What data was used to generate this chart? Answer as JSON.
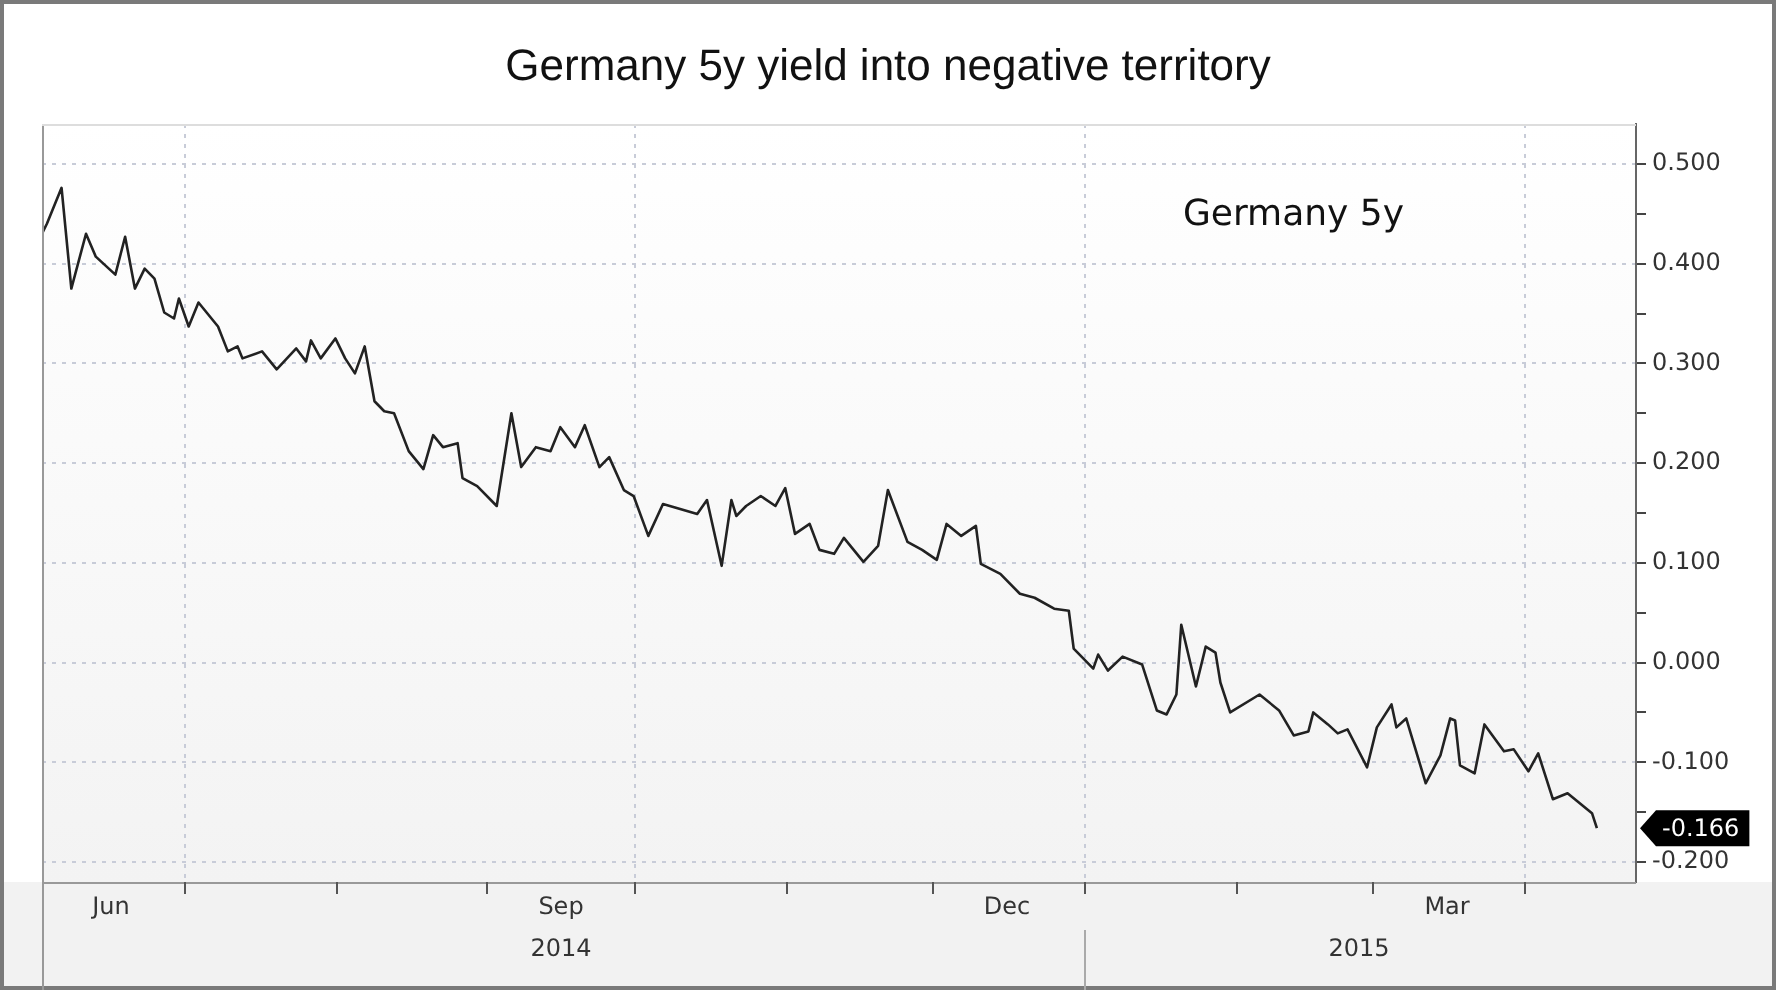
{
  "chart_data": {
    "type": "line",
    "title": "Germany 5y yield into negative territory",
    "legend": "top right",
    "grid": true,
    "marker": "none",
    "line_style": "solid",
    "xlim": [
      "2014-06-02",
      "2015-04-24"
    ],
    "xticks": [
      {
        "value": "2014-06-16",
        "label": "Jun"
      },
      {
        "value": "2014-07-01",
        "label": null
      },
      {
        "value": "2014-08-01",
        "label": null
      },
      {
        "value": "2014-09-01",
        "label": null
      },
      {
        "value": "2014-09-16",
        "label": "Sep"
      },
      {
        "value": "2014-10-01",
        "label": null
      },
      {
        "value": "2014-11-01",
        "label": null
      },
      {
        "value": "2014-12-01",
        "label": null
      },
      {
        "value": "2014-12-16",
        "label": "Dec"
      },
      {
        "value": "2015-01-01",
        "label": null
      },
      {
        "value": "2015-02-01",
        "label": null
      },
      {
        "value": "2015-03-01",
        "label": null
      },
      {
        "value": "2015-03-16",
        "label": "Mar"
      },
      {
        "value": "2015-04-01",
        "label": null
      }
    ],
    "x2lim": [
      "2014-06-02",
      "2015-04-24"
    ],
    "x2ticks": [
      {
        "value": "2014-09-16",
        "label": "2014"
      },
      {
        "value": "2015-01-01",
        "label": null
      },
      {
        "value": "2015-02-26",
        "label": "2015"
      }
    ],
    "ylim": [
      -0.22,
      0.54
    ],
    "yticks": [
      {
        "value": 0.5,
        "label": "0.500"
      },
      {
        "value": 0.45,
        "label": null
      },
      {
        "value": 0.4,
        "label": "0.400"
      },
      {
        "value": 0.35,
        "label": null
      },
      {
        "value": 0.3,
        "label": "0.300"
      },
      {
        "value": 0.25,
        "label": null
      },
      {
        "value": 0.2,
        "label": "0.200"
      },
      {
        "value": 0.15,
        "label": null
      },
      {
        "value": 0.1,
        "label": "0.100"
      },
      {
        "value": 0.05,
        "label": null
      },
      {
        "value": 0,
        "label": "0.000"
      },
      {
        "value": -0.05,
        "label": null
      },
      {
        "value": -0.1,
        "label": "-0.100"
      },
      {
        "value": -0.15,
        "label": null
      },
      {
        "value": -0.2,
        "label": "-0.200"
      }
    ],
    "annotations": [
      {
        "text": "-0.166",
        "x": "2015-04-16",
        "y": -0.166
      }
    ],
    "x": [
      "2014-06-02",
      "2014-06-03",
      "2014-06-06",
      "2014-06-08",
      "2014-06-11",
      "2014-06-13",
      "2014-06-17",
      "2014-06-19",
      "2014-06-21",
      "2014-06-23",
      "2014-06-25",
      "2014-06-27",
      "2014-06-29",
      "2014-06-30",
      "2014-07-02",
      "2014-07-04",
      "2014-07-08",
      "2014-07-10",
      "2014-07-12",
      "2014-07-13",
      "2014-07-17",
      "2014-07-20",
      "2014-07-24",
      "2014-07-26",
      "2014-07-27",
      "2014-07-29",
      "2014-08-01",
      "2014-08-03",
      "2014-08-05",
      "2014-08-07",
      "2014-08-09",
      "2014-08-11",
      "2014-08-13",
      "2014-08-16",
      "2014-08-19",
      "2014-08-21",
      "2014-08-23",
      "2014-08-26",
      "2014-08-27",
      "2014-08-30",
      "2014-09-03",
      "2014-09-06",
      "2014-09-08",
      "2014-09-11",
      "2014-09-14",
      "2014-09-16",
      "2014-09-19",
      "2014-09-21",
      "2014-09-24",
      "2014-09-26",
      "2014-09-29",
      "2014-10-01",
      "2014-10-04",
      "2014-10-07",
      "2014-10-14",
      "2014-10-16",
      "2014-10-19",
      "2014-10-21",
      "2014-10-22",
      "2014-10-24",
      "2014-10-27",
      "2014-10-30",
      "2014-11-01",
      "2014-11-03",
      "2014-11-06",
      "2014-11-08",
      "2014-11-11",
      "2014-11-13",
      "2014-11-17",
      "2014-11-20",
      "2014-11-22",
      "2014-11-26",
      "2014-11-29",
      "2014-12-02",
      "2014-12-04",
      "2014-12-07",
      "2014-12-10",
      "2014-12-11",
      "2014-12-15",
      "2014-12-19",
      "2014-12-22",
      "2014-12-26",
      "2014-12-29",
      "2014-12-30",
      "2015-01-03",
      "2015-01-04",
      "2015-01-06",
      "2015-01-09",
      "2015-01-13",
      "2015-01-16",
      "2015-01-18",
      "2015-01-20",
      "2015-01-21",
      "2015-01-24",
      "2015-01-26",
      "2015-01-28",
      "2015-01-29",
      "2015-01-31",
      "2015-02-06",
      "2015-02-10",
      "2015-02-13",
      "2015-02-16",
      "2015-02-17",
      "2015-02-20",
      "2015-02-22",
      "2015-02-24",
      "2015-02-28",
      "2015-03-02",
      "2015-03-05",
      "2015-03-06",
      "2015-03-08",
      "2015-03-12",
      "2015-03-15",
      "2015-03-17",
      "2015-03-18",
      "2015-03-19",
      "2015-03-22",
      "2015-03-24",
      "2015-03-28",
      "2015-03-30",
      "2015-04-02",
      "2015-04-04",
      "2015-04-07",
      "2015-04-10",
      "2015-04-15",
      "2015-04-16"
    ],
    "series": [
      {
        "name": "Germany 5y",
        "color": "#222222",
        "values": [
          0.43,
          0.44,
          0.476,
          0.375,
          0.43,
          0.407,
          0.389,
          0.427,
          0.375,
          0.395,
          0.385,
          0.351,
          0.345,
          0.365,
          0.337,
          0.361,
          0.337,
          0.312,
          0.317,
          0.305,
          0.312,
          0.294,
          0.315,
          0.302,
          0.323,
          0.305,
          0.325,
          0.305,
          0.29,
          0.317,
          0.262,
          0.252,
          0.25,
          0.212,
          0.194,
          0.228,
          0.216,
          0.22,
          0.185,
          0.177,
          0.157,
          0.25,
          0.196,
          0.216,
          0.212,
          0.236,
          0.216,
          0.238,
          0.196,
          0.206,
          0.173,
          0.167,
          0.127,
          0.159,
          0.149,
          0.163,
          0.097,
          0.163,
          0.147,
          0.157,
          0.167,
          0.157,
          0.175,
          0.129,
          0.139,
          0.113,
          0.109,
          0.125,
          0.101,
          0.117,
          0.173,
          0.121,
          0.113,
          0.103,
          0.139,
          0.127,
          0.137,
          0.099,
          0.089,
          0.069,
          0.065,
          0.054,
          0.052,
          0.014,
          -0.006,
          0.008,
          -0.008,
          0.006,
          -0.002,
          -0.048,
          -0.052,
          -0.032,
          0.038,
          -0.024,
          0.016,
          0.01,
          -0.02,
          -0.05,
          -0.032,
          -0.048,
          -0.073,
          -0.069,
          -0.05,
          -0.062,
          -0.071,
          -0.067,
          -0.105,
          -0.065,
          -0.042,
          -0.065,
          -0.056,
          -0.121,
          -0.093,
          -0.056,
          -0.058,
          -0.103,
          -0.111,
          -0.062,
          -0.089,
          -0.087,
          -0.109,
          -0.091,
          -0.137,
          -0.131,
          -0.151,
          -0.166
        ]
      }
    ]
  }
}
